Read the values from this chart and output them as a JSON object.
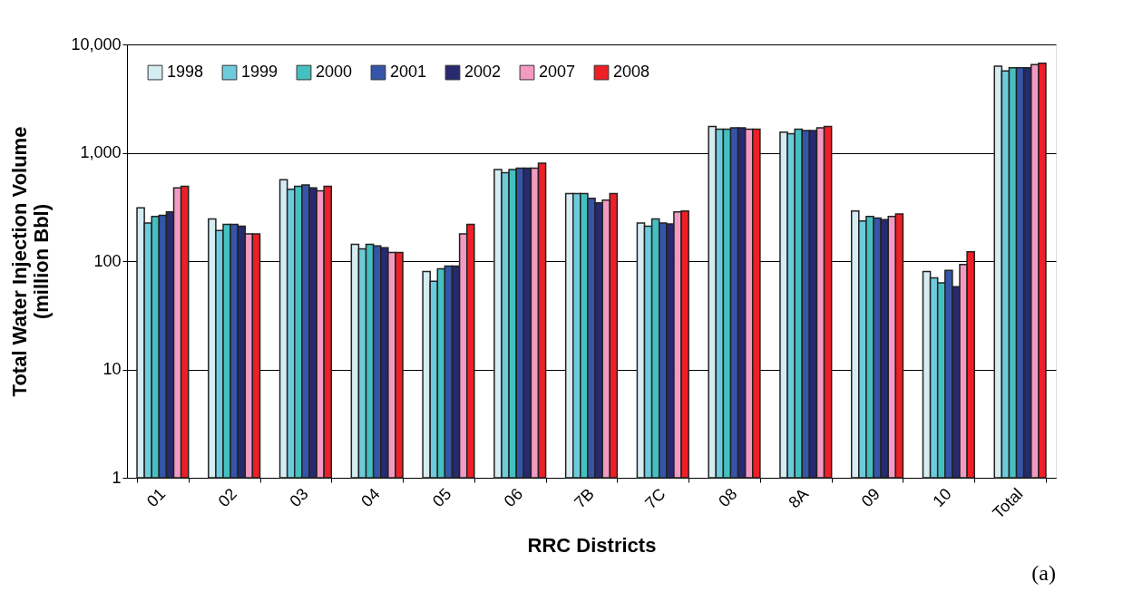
{
  "chart_data": {
    "type": "bar",
    "xlabel": "RRC Districts",
    "ylabel": "Total Water Injection Volume\n(million Bbl)",
    "categories": [
      "01",
      "02",
      "03",
      "04",
      "05",
      "06",
      "7B",
      "7C",
      "08",
      "8A",
      "09",
      "10",
      "Total"
    ],
    "series": [
      {
        "name": "1998",
        "color": "#d4ecf2",
        "values": [
          310,
          245,
          565,
          143,
          80,
          700,
          420,
          225,
          1750,
          1550,
          290,
          80,
          6300
        ]
      },
      {
        "name": "1999",
        "color": "#6ecbdc",
        "values": [
          225,
          192,
          460,
          130,
          65,
          655,
          420,
          210,
          1650,
          1500,
          235,
          70,
          5700
        ]
      },
      {
        "name": "2000",
        "color": "#45c0c0",
        "values": [
          258,
          218,
          490,
          143,
          85,
          700,
          420,
          245,
          1650,
          1650,
          258,
          63,
          6100
        ]
      },
      {
        "name": "2001",
        "color": "#3555a8",
        "values": [
          265,
          218,
          505,
          138,
          90,
          720,
          380,
          225,
          1700,
          1600,
          250,
          82,
          6100
        ]
      },
      {
        "name": "2002",
        "color": "#272a6e",
        "values": [
          285,
          210,
          475,
          133,
          90,
          720,
          345,
          220,
          1700,
          1600,
          242,
          58,
          6100
        ]
      },
      {
        "name": "2007",
        "color": "#f49ac2",
        "values": [
          475,
          178,
          445,
          120,
          178,
          720,
          365,
          285,
          1650,
          1700,
          258,
          93,
          6500
        ]
      },
      {
        "name": "2008",
        "color": "#ee1f25",
        "values": [
          490,
          178,
          490,
          120,
          218,
          800,
          420,
          290,
          1650,
          1750,
          272,
          122,
          6700
        ]
      }
    ],
    "log": true,
    "ylim": [
      1,
      10000
    ],
    "yticks": [
      1,
      10,
      100,
      {
        "value": 1000,
        "label": "1,000"
      },
      {
        "value": 10000,
        "label": "10,000"
      }
    ],
    "grid": "y",
    "legend": "top left",
    "annotations": [
      "(a)"
    ]
  }
}
